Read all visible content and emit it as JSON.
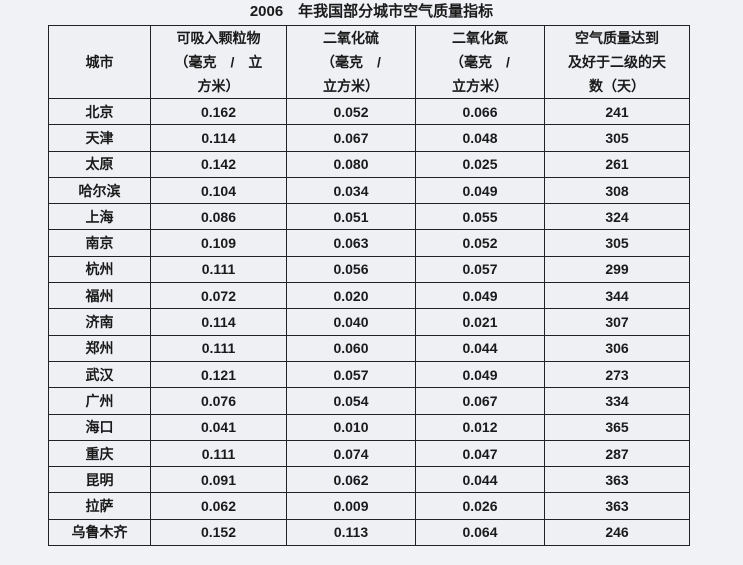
{
  "title": "2006　年我国部分城市空气质量指标",
  "headers": [
    [
      "城市"
    ],
    [
      "可吸入颗粒物",
      "（毫克　/　立",
      "方米）"
    ],
    [
      "二氧化硫",
      "（毫克　/",
      "立方米）"
    ],
    [
      "二氧化氮",
      "（毫克　/",
      "立方米）"
    ],
    [
      "空气质量达到",
      "及好于二级的天",
      "数（天）"
    ]
  ],
  "rows": [
    [
      "北京",
      "0.162",
      "0.052",
      "0.066",
      "241"
    ],
    [
      "天津",
      "0.114",
      "0.067",
      "0.048",
      "305"
    ],
    [
      "太原",
      "0.142",
      "0.080",
      "0.025",
      "261"
    ],
    [
      "哈尔滨",
      "0.104",
      "0.034",
      "0.049",
      "308"
    ],
    [
      "上海",
      "0.086",
      "0.051",
      "0.055",
      "324"
    ],
    [
      "南京",
      "0.109",
      "0.063",
      "0.052",
      "305"
    ],
    [
      "杭州",
      "0.111",
      "0.056",
      "0.057",
      "299"
    ],
    [
      "福州",
      "0.072",
      "0.020",
      "0.049",
      "344"
    ],
    [
      "济南",
      "0.114",
      "0.040",
      "0.021",
      "307"
    ],
    [
      "郑州",
      "0.111",
      "0.060",
      "0.044",
      "306"
    ],
    [
      "武汉",
      "0.121",
      "0.057",
      "0.049",
      "273"
    ],
    [
      "广州",
      "0.076",
      "0.054",
      "0.067",
      "334"
    ],
    [
      "海口",
      "0.041",
      "0.010",
      "0.012",
      "365"
    ],
    [
      "重庆",
      "0.111",
      "0.074",
      "0.047",
      "287"
    ],
    [
      "昆明",
      "0.091",
      "0.062",
      "0.044",
      "363"
    ],
    [
      "拉萨",
      "0.062",
      "0.009",
      "0.026",
      "363"
    ],
    [
      "乌鲁木齐",
      "0.152",
      "0.113",
      "0.064",
      "246"
    ]
  ]
}
